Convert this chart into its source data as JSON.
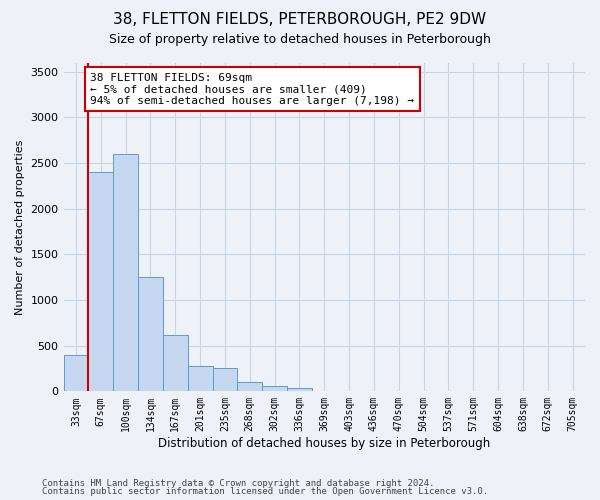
{
  "title": "38, FLETTON FIELDS, PETERBOROUGH, PE2 9DW",
  "subtitle": "Size of property relative to detached houses in Peterborough",
  "xlabel": "Distribution of detached houses by size in Peterborough",
  "ylabel": "Number of detached properties",
  "footnote1": "Contains HM Land Registry data © Crown copyright and database right 2024.",
  "footnote2": "Contains public sector information licensed under the Open Government Licence v3.0.",
  "bin_labels": [
    "33sqm",
    "67sqm",
    "100sqm",
    "134sqm",
    "167sqm",
    "201sqm",
    "235sqm",
    "268sqm",
    "302sqm",
    "336sqm",
    "369sqm",
    "403sqm",
    "436sqm",
    "470sqm",
    "504sqm",
    "537sqm",
    "571sqm",
    "604sqm",
    "638sqm",
    "672sqm",
    "705sqm"
  ],
  "bar_heights": [
    400,
    2400,
    2600,
    1250,
    620,
    280,
    250,
    100,
    60,
    40,
    5,
    5,
    2,
    1,
    0,
    0,
    0,
    0,
    0,
    0,
    0
  ],
  "bar_color": "#c5d8f0",
  "bar_edge_color": "#5b9bd5",
  "grid_color": "#c8d4e8",
  "background_color": "#eef2f8",
  "vline_color": "#cc0000",
  "annotation_text": "38 FLETTON FIELDS: 69sqm\n← 5% of detached houses are smaller (409)\n94% of semi-detached houses are larger (7,198) →",
  "annotation_box_color": "#ffffff",
  "annotation_box_edge": "#cc0000",
  "ylim": [
    0,
    3600
  ],
  "yticks": [
    0,
    500,
    1000,
    1500,
    2000,
    2500,
    3000,
    3500
  ],
  "title_fontsize": 11,
  "subtitle_fontsize": 9,
  "ylabel_fontsize": 8,
  "xlabel_fontsize": 8.5,
  "tick_fontsize": 8,
  "annot_fontsize": 8,
  "footnote_fontsize": 6.5
}
